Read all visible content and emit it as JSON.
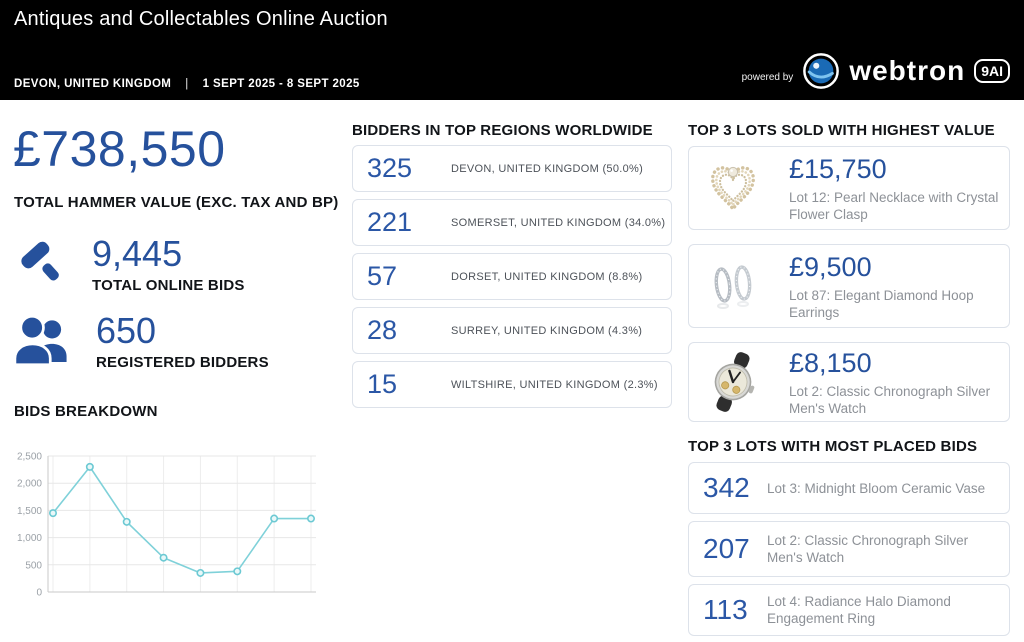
{
  "header": {
    "title": "Antiques and Collectables Online Auction",
    "location": "DEVON, UNITED KINGDOM",
    "divider": "|",
    "date_range": "1 SEPT 2025 - 8 SEPT 2025",
    "powered_by": "powered by",
    "brand": "webtron",
    "brand_badge": "9AI"
  },
  "stats": {
    "hammer_value": "£738,550",
    "hammer_label": "TOTAL HAMMER VALUE (EXC. TAX AND BP)",
    "online_bids": "9,445",
    "online_bids_label": "TOTAL ONLINE BIDS",
    "registered_bidders": "650",
    "registered_bidders_label": "REGISTERED BIDDERS"
  },
  "regions": {
    "title": "BIDDERS IN TOP REGIONS WORLDWIDE",
    "items": [
      {
        "count": "325",
        "label": "DEVON, UNITED KINGDOM (50.0%)"
      },
      {
        "count": "221",
        "label": "SOMERSET, UNITED KINGDOM (34.0%)"
      },
      {
        "count": "57",
        "label": "DORSET, UNITED KINGDOM (8.8%)"
      },
      {
        "count": "28",
        "label": "SURREY, UNITED KINGDOM (4.3%)"
      },
      {
        "count": "15",
        "label": "WILTSHIRE, UNITED KINGDOM (2.3%)"
      }
    ]
  },
  "top_lots": {
    "title": "TOP 3 LOTS SOLD WITH HIGHEST VALUE",
    "items": [
      {
        "price": "£15,750",
        "label": "Lot 12: Pearl Necklace with Crystal Flower Clasp",
        "image": "pearl-necklace"
      },
      {
        "price": "£9,500",
        "label": "Lot 87: Elegant Diamond Hoop Earrings",
        "image": "diamond-hoop-earrings"
      },
      {
        "price": "£8,150",
        "label": "Lot 2: Classic Chronograph Silver Men's Watch",
        "image": "chronograph-watch"
      }
    ]
  },
  "most_bids": {
    "title": "TOP 3 LOTS WITH MOST PLACED BIDS",
    "items": [
      {
        "count": "342",
        "label": "Lot 3:  Midnight Bloom Ceramic Vase"
      },
      {
        "count": "207",
        "label": "Lot 2: Classic Chronograph Silver Men's Watch"
      },
      {
        "count": "113",
        "label": "Lot 4: Radiance Halo Diamond Engagement Ring"
      }
    ]
  },
  "chart_data": {
    "type": "line",
    "title": "BIDS BREAKDOWN",
    "x": [
      1,
      2,
      3,
      4,
      5,
      6,
      7,
      8
    ],
    "values": [
      1450,
      2300,
      1290,
      630,
      350,
      380,
      1350,
      1350
    ],
    "ylim": [
      0,
      2500
    ],
    "yticks": [
      0,
      500,
      1000,
      1500,
      2000,
      2500
    ],
    "ytick_labels": [
      "0",
      "500",
      "1,000",
      "1,500",
      "2,000",
      "2,500"
    ],
    "xlabel": "",
    "ylabel": "",
    "grid": true,
    "legend": "none",
    "line_color": "#7fd1d9",
    "marker_fill": "#e9f8f9",
    "marker_stroke": "#6cc9d3"
  },
  "colors": {
    "accent_blue": "#26519c",
    "card_number_blue": "#2b57a6",
    "header_bg": "#000000",
    "card_border": "#dde2ea",
    "muted_text": "#8d9197",
    "line_teal": "#7fd1d9"
  }
}
